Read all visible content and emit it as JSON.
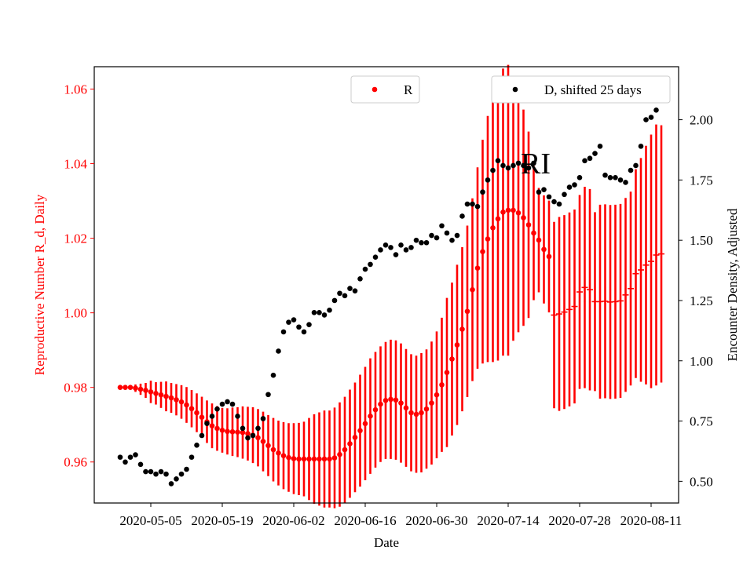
{
  "chart_data": {
    "type": "scatter",
    "title": "",
    "annotation": "RI",
    "xlabel": "Date",
    "ylabel_left": "Reproductive Number R_d, Daily",
    "ylabel_right": "Encounter Density, Adjusted",
    "x_start": "2020-04-29",
    "x_tick_labels": [
      "2020-05-05",
      "2020-05-19",
      "2020-06-02",
      "2020-06-16",
      "2020-06-30",
      "2020-07-14",
      "2020-07-28",
      "2020-08-11"
    ],
    "ylim_left": [
      0.949,
      1.066
    ],
    "ylim_right": [
      0.41,
      2.22
    ],
    "yticks_left": [
      "0.96",
      "0.98",
      "1.00",
      "1.02",
      "1.04",
      "1.06"
    ],
    "yticks_right": [
      "0.50",
      "0.75",
      "1.00",
      "1.25",
      "1.50",
      "1.75",
      "2.00"
    ],
    "colors": {
      "R": "#ff0000",
      "D": "#000000",
      "left_axis": "#ff0000",
      "right_axis": "#000000"
    },
    "legend": [
      {
        "name": "R",
        "color": "#ff0000",
        "placement": "top-center"
      },
      {
        "name": "D, shifted 25 days",
        "color": "#000000",
        "placement": "top-right"
      }
    ],
    "series": [
      {
        "name": "R",
        "axis": "left",
        "x": [
          "2020-04-29",
          "2020-04-30",
          "2020-05-01",
          "2020-05-02",
          "2020-05-03",
          "2020-05-04",
          "2020-05-05",
          "2020-05-06",
          "2020-05-07",
          "2020-05-08",
          "2020-05-09",
          "2020-05-10",
          "2020-05-11",
          "2020-05-12",
          "2020-05-13",
          "2020-05-14",
          "2020-05-15",
          "2020-05-16",
          "2020-05-17",
          "2020-05-18",
          "2020-05-19",
          "2020-05-20",
          "2020-05-21",
          "2020-05-22",
          "2020-05-23",
          "2020-05-24",
          "2020-05-25",
          "2020-05-26",
          "2020-05-27",
          "2020-05-28",
          "2020-05-29",
          "2020-05-30",
          "2020-05-31",
          "2020-06-01",
          "2020-06-02",
          "2020-06-03",
          "2020-06-04",
          "2020-06-05",
          "2020-06-06",
          "2020-06-07",
          "2020-06-08",
          "2020-06-09",
          "2020-06-10",
          "2020-06-11",
          "2020-06-12",
          "2020-06-13",
          "2020-06-14",
          "2020-06-15",
          "2020-06-16",
          "2020-06-17",
          "2020-06-18",
          "2020-06-19",
          "2020-06-20",
          "2020-06-21",
          "2020-06-22",
          "2020-06-23",
          "2020-06-24",
          "2020-06-25",
          "2020-06-26",
          "2020-06-27",
          "2020-06-28",
          "2020-06-29",
          "2020-06-30",
          "2020-07-01",
          "2020-07-02",
          "2020-07-03",
          "2020-07-04",
          "2020-07-05",
          "2020-07-06",
          "2020-07-07",
          "2020-07-08",
          "2020-07-09",
          "2020-07-10",
          "2020-07-11",
          "2020-07-12",
          "2020-07-13",
          "2020-07-14",
          "2020-07-15",
          "2020-07-16",
          "2020-07-17",
          "2020-07-18",
          "2020-07-19",
          "2020-07-20",
          "2020-07-21",
          "2020-07-22",
          "2020-07-23",
          "2020-07-24",
          "2020-07-25",
          "2020-07-26",
          "2020-07-27",
          "2020-07-28",
          "2020-07-29",
          "2020-07-30",
          "2020-07-31",
          "2020-08-01",
          "2020-08-02",
          "2020-08-03",
          "2020-08-04",
          "2020-08-05",
          "2020-08-06",
          "2020-08-07",
          "2020-08-08",
          "2020-08-09",
          "2020-08-10",
          "2020-08-11",
          "2020-08-12",
          "2020-08-13"
        ],
        "y": [
          0.98,
          0.98,
          0.98,
          0.9798,
          0.9795,
          0.9792,
          0.9788,
          0.9784,
          0.978,
          0.9776,
          0.9772,
          0.9767,
          0.9761,
          0.9753,
          0.9743,
          0.9732,
          0.972,
          0.9708,
          0.9697,
          0.969,
          0.9685,
          0.9682,
          0.9681,
          0.968,
          0.9679,
          0.9676,
          0.9672,
          0.9665,
          0.9655,
          0.9644,
          0.9633,
          0.9624,
          0.9617,
          0.9612,
          0.9609,
          0.9608,
          0.9608,
          0.9608,
          0.9608,
          0.9608,
          0.9608,
          0.9608,
          0.9611,
          0.962,
          0.9633,
          0.9649,
          0.9666,
          0.9684,
          0.9703,
          0.9723,
          0.974,
          0.9755,
          0.9765,
          0.9768,
          0.9766,
          0.9758,
          0.9745,
          0.9732,
          0.9728,
          0.9732,
          0.9742,
          0.9758,
          0.978,
          0.9807,
          0.984,
          0.9876,
          0.9914,
          0.9956,
          1.0004,
          1.0062,
          1.012,
          1.0164,
          1.0198,
          1.0228,
          1.0252,
          1.027,
          1.0275,
          1.0275,
          1.0268,
          1.0255,
          1.0236,
          1.0214,
          1.0195,
          1.017,
          1.0151,
          0.9994,
          0.9997,
          1.0002,
          1.0009,
          1.0017,
          1.0056,
          1.0068,
          1.0062,
          1.003,
          1.003,
          1.0031,
          1.0029,
          1.003,
          1.0032,
          1.0048,
          1.0065,
          1.0105,
          1.0115,
          1.0128,
          1.0138,
          1.0155,
          1.0158
        ],
        "err": [
          0.0,
          0.0,
          0.0,
          0.001,
          0.0015,
          0.002,
          0.003,
          0.003,
          0.0035,
          0.004,
          0.004,
          0.0042,
          0.0045,
          0.0048,
          0.005,
          0.0052,
          0.0055,
          0.0057,
          0.006,
          0.006,
          0.006,
          0.0062,
          0.0065,
          0.0067,
          0.007,
          0.0072,
          0.0075,
          0.0077,
          0.008,
          0.0082,
          0.0085,
          0.0087,
          0.009,
          0.0092,
          0.0095,
          0.0097,
          0.01,
          0.011,
          0.012,
          0.0125,
          0.013,
          0.013,
          0.0135,
          0.014,
          0.0142,
          0.0145,
          0.0147,
          0.015,
          0.0152,
          0.0155,
          0.0155,
          0.0155,
          0.0157,
          0.016,
          0.016,
          0.016,
          0.0158,
          0.0157,
          0.0157,
          0.016,
          0.016,
          0.0165,
          0.017,
          0.018,
          0.02,
          0.0205,
          0.0215,
          0.022,
          0.023,
          0.0245,
          0.027,
          0.03,
          0.033,
          0.036,
          0.038,
          0.0385,
          0.039,
          0.035,
          0.032,
          0.029,
          0.025,
          0.018,
          0.014,
          0.0145,
          0.015,
          0.025,
          0.026,
          0.026,
          0.026,
          0.026,
          0.026,
          0.027,
          0.027,
          0.024,
          0.026,
          0.026,
          0.026,
          0.026,
          0.026,
          0.026,
          0.026,
          0.028,
          0.03,
          0.032,
          0.034,
          0.035,
          0.0345
        ]
      },
      {
        "name": "D, shifted 25 days",
        "axis": "right",
        "x": [
          "2020-04-29",
          "2020-04-30",
          "2020-05-01",
          "2020-05-02",
          "2020-05-03",
          "2020-05-04",
          "2020-05-05",
          "2020-05-06",
          "2020-05-07",
          "2020-05-08",
          "2020-05-09",
          "2020-05-10",
          "2020-05-11",
          "2020-05-12",
          "2020-05-13",
          "2020-05-14",
          "2020-05-15",
          "2020-05-16",
          "2020-05-17",
          "2020-05-18",
          "2020-05-19",
          "2020-05-20",
          "2020-05-21",
          "2020-05-22",
          "2020-05-23",
          "2020-05-24",
          "2020-05-25",
          "2020-05-26",
          "2020-05-27",
          "2020-05-28",
          "2020-05-29",
          "2020-05-30",
          "2020-05-31",
          "2020-06-01",
          "2020-06-02",
          "2020-06-03",
          "2020-06-04",
          "2020-06-05",
          "2020-06-06",
          "2020-06-07",
          "2020-06-08",
          "2020-06-09",
          "2020-06-10",
          "2020-06-11",
          "2020-06-12",
          "2020-06-13",
          "2020-06-14",
          "2020-06-15",
          "2020-06-16",
          "2020-06-17",
          "2020-06-18",
          "2020-06-19",
          "2020-06-20",
          "2020-06-21",
          "2020-06-22",
          "2020-06-23",
          "2020-06-24",
          "2020-06-25",
          "2020-06-26",
          "2020-06-27",
          "2020-06-28",
          "2020-06-29",
          "2020-06-30",
          "2020-07-01",
          "2020-07-02",
          "2020-07-03",
          "2020-07-04",
          "2020-07-05",
          "2020-07-06",
          "2020-07-07",
          "2020-07-08",
          "2020-07-09",
          "2020-07-10",
          "2020-07-11",
          "2020-07-12",
          "2020-07-13",
          "2020-07-14",
          "2020-07-15",
          "2020-07-16",
          "2020-07-17",
          "2020-07-18",
          "2020-07-19",
          "2020-07-20",
          "2020-07-21",
          "2020-07-22",
          "2020-07-23",
          "2020-07-24",
          "2020-07-25",
          "2020-07-26",
          "2020-07-27",
          "2020-07-28",
          "2020-07-29",
          "2020-07-30",
          "2020-07-31",
          "2020-08-01",
          "2020-08-02",
          "2020-08-03",
          "2020-08-04",
          "2020-08-05",
          "2020-08-06",
          "2020-08-07",
          "2020-08-08",
          "2020-08-09",
          "2020-08-10",
          "2020-08-11",
          "2020-08-12",
          "2020-08-13"
        ],
        "y": [
          0.6,
          0.58,
          0.6,
          0.61,
          0.57,
          0.54,
          0.54,
          0.53,
          0.54,
          0.53,
          0.49,
          0.51,
          0.53,
          0.55,
          0.6,
          0.65,
          0.69,
          0.74,
          0.77,
          0.8,
          0.82,
          0.83,
          0.82,
          0.77,
          0.72,
          0.68,
          0.69,
          0.72,
          0.76,
          0.86,
          0.94,
          1.04,
          1.12,
          1.16,
          1.17,
          1.14,
          1.12,
          1.15,
          1.2,
          1.2,
          1.19,
          1.21,
          1.25,
          1.28,
          1.27,
          1.3,
          1.29,
          1.34,
          1.38,
          1.4,
          1.43,
          1.46,
          1.48,
          1.47,
          1.44,
          1.48,
          1.46,
          1.47,
          1.5,
          1.49,
          1.49,
          1.52,
          1.51,
          1.56,
          1.53,
          1.5,
          1.52,
          1.6,
          1.65,
          1.65,
          1.64,
          1.7,
          1.75,
          1.79,
          1.83,
          1.81,
          1.8,
          1.81,
          1.82,
          1.81,
          1.8,
          1.82,
          1.7,
          1.71,
          1.68,
          1.66,
          1.65,
          1.69,
          1.72,
          1.73,
          1.76,
          1.83,
          1.84,
          1.86,
          1.89,
          1.77,
          1.76,
          1.76,
          1.75,
          1.74,
          1.79,
          1.81,
          1.89,
          2.0,
          2.01,
          2.04,
          2.12
        ]
      }
    ]
  }
}
